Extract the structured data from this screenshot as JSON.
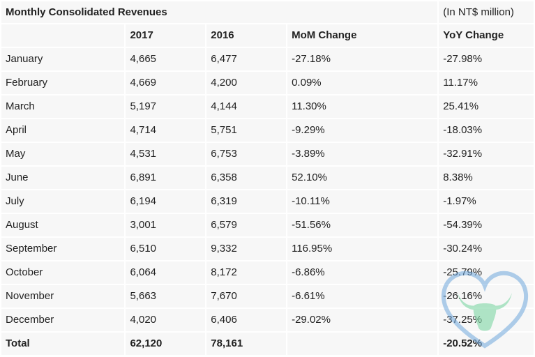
{
  "table": {
    "title": "Monthly Consolidated Revenues",
    "unit_note": "(In NT$ million)",
    "headers": [
      "",
      "2017",
      "2016",
      "MoM Change",
      "YoY Change"
    ],
    "rows": [
      {
        "month": "January",
        "y2017": "4,665",
        "y2016": "6,477",
        "mom": "-27.18%",
        "yoy": "-27.98%"
      },
      {
        "month": "February",
        "y2017": "4,669",
        "y2016": "4,200",
        "mom": "0.09%",
        "yoy": "11.17%"
      },
      {
        "month": "March",
        "y2017": "5,197",
        "y2016": "4,144",
        "mom": "11.30%",
        "yoy": "25.41%"
      },
      {
        "month": "April",
        "y2017": "4,714",
        "y2016": "5,751",
        "mom": "-9.29%",
        "yoy": "-18.03%"
      },
      {
        "month": "May",
        "y2017": "4,531",
        "y2016": "6,753",
        "mom": "-3.89%",
        "yoy": "-32.91%"
      },
      {
        "month": "June",
        "y2017": "6,891",
        "y2016": "6,358",
        "mom": "52.10%",
        "yoy": "8.38%"
      },
      {
        "month": "July",
        "y2017": "6,194",
        "y2016": "6,319",
        "mom": "-10.11%",
        "yoy": "-1.97%"
      },
      {
        "month": "August",
        "y2017": "3,001",
        "y2016": "6,579",
        "mom": "-51.56%",
        "yoy": "-54.39%"
      },
      {
        "month": "September",
        "y2017": "6,510",
        "y2016": "9,332",
        "mom": "116.95%",
        "yoy": "-30.24%"
      },
      {
        "month": "October",
        "y2017": "6,064",
        "y2016": "8,172",
        "mom": "-6.86%",
        "yoy": "-25.79%"
      },
      {
        "month": "November",
        "y2017": "5,663",
        "y2016": "7,670",
        "mom": "-6.61%",
        "yoy": "-26.16%"
      },
      {
        "month": "December",
        "y2017": "4,020",
        "y2016": "6,406",
        "mom": "-29.02%",
        "yoy": "-37.25%"
      }
    ],
    "total": {
      "label": "Total",
      "y2017": "62,120",
      "y2016": "78,161",
      "mom": "",
      "yoy": "-20.52%"
    }
  },
  "watermark": {
    "icon": "bull-head-heart-logo",
    "heart_color": "#6fa8dc",
    "bull_color": "#7ed6a5"
  }
}
